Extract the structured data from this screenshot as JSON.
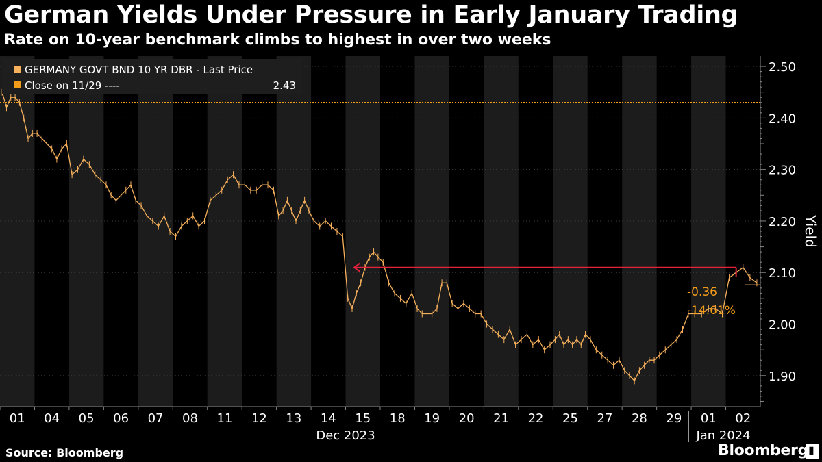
{
  "title": "German Yields Under Pressure in Early January Trading",
  "subtitle": "Rate on 10-year benchmark climbs to highest in over two weeks",
  "source": "Source: Bloomberg",
  "brand": "Bloomberg",
  "brand_icon": "bloomberg-terminal-icon",
  "colors": {
    "background": "#000000",
    "band": "#1c1c1c",
    "line": "#f7b15c",
    "reference": "#f39c1a",
    "arrow": "#e5213c",
    "grid": "#3c3c3c",
    "text": "#ffffff",
    "annotation": "#f39c1a"
  },
  "chart_data": {
    "type": "line",
    "title": "German Yields Under Pressure in Early January Trading",
    "subtitle": "Rate on 10-year benchmark climbs to highest in over two weeks",
    "ylabel": "Yield",
    "xlabel": "",
    "ylim": [
      1.84,
      2.52
    ],
    "yticks": [
      1.9,
      2.0,
      2.1,
      2.2,
      2.3,
      2.4,
      2.5
    ],
    "ytick_labels": [
      "1.90",
      "2.00",
      "2.10",
      "2.20",
      "2.30",
      "2.40",
      "2.50"
    ],
    "y_axis_side": "right",
    "grid": true,
    "legend_position": "top-left",
    "categories": [
      "01",
      "04",
      "05",
      "06",
      "07",
      "08",
      "11",
      "12",
      "13",
      "14",
      "15",
      "18",
      "19",
      "20",
      "21",
      "22",
      "25",
      "27",
      "28",
      "29",
      "01",
      "02"
    ],
    "group_labels": [
      {
        "label": "Dec 2023",
        "start": 0,
        "end": 19
      },
      {
        "label": "Jan 2024",
        "start": 20,
        "end": 21
      }
    ],
    "series": [
      {
        "name": "GERMANY GOVT BND 10 YR DBR - Last Price",
        "days": [
          {
            "cat": "01",
            "points": [
              2.45,
              2.42,
              2.44,
              2.44,
              2.43,
              2.4,
              2.36,
              2.37
            ]
          },
          {
            "cat": "04",
            "points": [
              2.37,
              2.36,
              2.35,
              2.34,
              2.32,
              2.34,
              2.35
            ]
          },
          {
            "cat": "05",
            "points": [
              2.29,
              2.3,
              2.32,
              2.31,
              2.29,
              2.28
            ]
          },
          {
            "cat": "06",
            "points": [
              2.27,
              2.25,
              2.24,
              2.25,
              2.26,
              2.27,
              2.24
            ]
          },
          {
            "cat": "07",
            "points": [
              2.23,
              2.21,
              2.2,
              2.19,
              2.21,
              2.18
            ]
          },
          {
            "cat": "08",
            "points": [
              2.17,
              2.19,
              2.2,
              2.21,
              2.19,
              2.2
            ]
          },
          {
            "cat": "11",
            "points": [
              2.24,
              2.25,
              2.26,
              2.28,
              2.29,
              2.27
            ]
          },
          {
            "cat": "12",
            "points": [
              2.27,
              2.26,
              2.26,
              2.27,
              2.27,
              2.26
            ]
          },
          {
            "cat": "13",
            "points": [
              2.21,
              2.22,
              2.24,
              2.22,
              2.2,
              2.22,
              2.24,
              2.22
            ]
          },
          {
            "cat": "14",
            "points": [
              2.2,
              2.19,
              2.2,
              2.19,
              2.18,
              2.17
            ]
          },
          {
            "cat": "15",
            "points": [
              2.05,
              2.03,
              2.06,
              2.08,
              2.11,
              2.13,
              2.14,
              2.13
            ]
          },
          {
            "cat": "18",
            "points": [
              2.12,
              2.08,
              2.06,
              2.05,
              2.04,
              2.06
            ]
          },
          {
            "cat": "19",
            "points": [
              2.03,
              2.02,
              2.02,
              2.02,
              2.03,
              2.08,
              2.08
            ]
          },
          {
            "cat": "20",
            "points": [
              2.04,
              2.03,
              2.04,
              2.03,
              2.02,
              2.02
            ]
          },
          {
            "cat": "21",
            "points": [
              2.0,
              1.99,
              1.98,
              1.97,
              1.99,
              1.96
            ]
          },
          {
            "cat": "22",
            "points": [
              1.97,
              1.98,
              1.96,
              1.97,
              1.95,
              1.96
            ]
          },
          {
            "cat": "25",
            "points": [
              1.97,
              1.98,
              1.96,
              1.97,
              1.96,
              1.97,
              1.96,
              1.98
            ]
          },
          {
            "cat": "27",
            "points": [
              1.97,
              1.95,
              1.94,
              1.93,
              1.92,
              1.93
            ]
          },
          {
            "cat": "28",
            "points": [
              1.91,
              1.9,
              1.89,
              1.91,
              1.92,
              1.93,
              1.93
            ]
          },
          {
            "cat": "29",
            "points": [
              1.94,
              1.95,
              1.96,
              1.97,
              1.99,
              2.02
            ]
          },
          {
            "cat": "01",
            "points": [
              2.02,
              2.02,
              2.03,
              2.03,
              2.02
            ]
          },
          {
            "cat": "02",
            "points": [
              2.09,
              2.1,
              2.11,
              2.09,
              2.08
            ]
          }
        ]
      }
    ],
    "reference_line": {
      "label": "Close on 11/29 ----",
      "value": 2.43,
      "value_label": "2.43"
    },
    "last_value": 2.076,
    "annotation": {
      "change": "-0.36",
      "change_pct": "-14.61%"
    },
    "arrow": {
      "from_category": "02",
      "to_category": "15",
      "level": 2.11
    }
  }
}
